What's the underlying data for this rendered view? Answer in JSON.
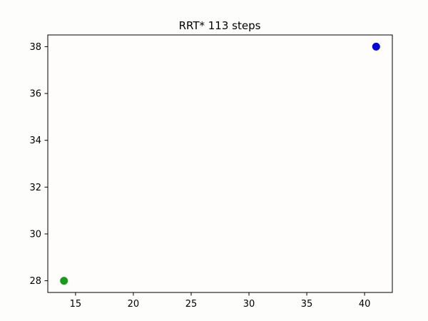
{
  "chart_data": {
    "type": "scatter",
    "title": "RRT* 113 steps",
    "xlabel": "",
    "ylabel": "",
    "xlim": [
      12.6,
      42.4
    ],
    "ylim": [
      27.5,
      38.5
    ],
    "xticks": [
      15,
      20,
      25,
      30,
      35,
      40
    ],
    "yticks": [
      28,
      30,
      32,
      34,
      36,
      38
    ],
    "grid": false,
    "legend": "none",
    "series": [
      {
        "x": [
          14
        ],
        "y": [
          28
        ],
        "color": "#1a9a1a"
      },
      {
        "x": [
          41
        ],
        "y": [
          38
        ],
        "color": "#0000e0"
      }
    ]
  }
}
